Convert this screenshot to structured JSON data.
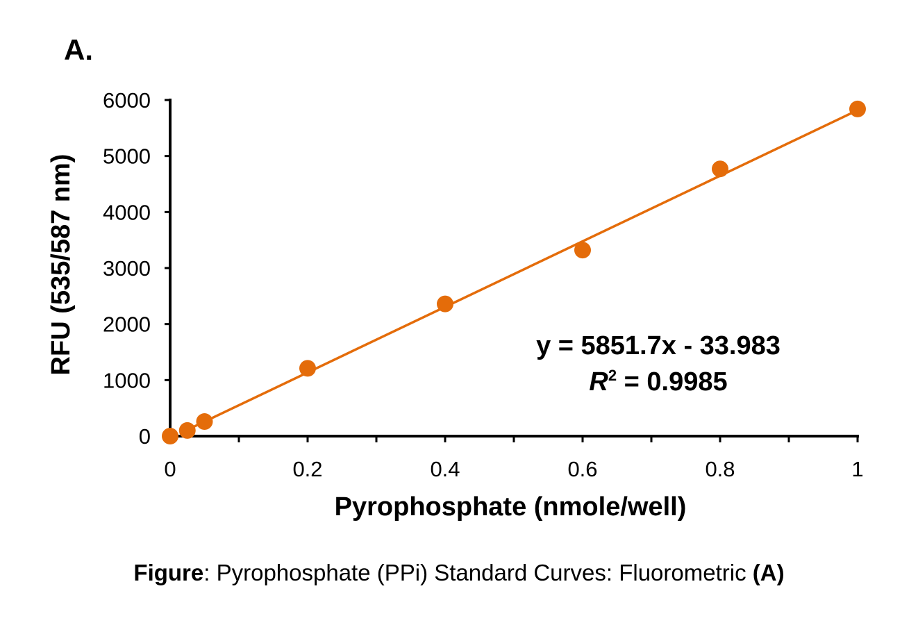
{
  "panel_label": "A.",
  "caption": {
    "bold_prefix": "Figure",
    "text": ": Pyrophosphate  (PPi) Standard Curves: Fluorometric ",
    "bold_suffix": "(A)"
  },
  "chart_data": {
    "type": "scatter",
    "xlabel": "Pyrophosphate  (nmole/well)",
    "ylabel": "RFU (535/587 nm)",
    "xlim": [
      0,
      1
    ],
    "ylim": [
      0,
      6000
    ],
    "x_ticks": [
      "0",
      "0.2",
      "0.4",
      "0.6",
      "0.8",
      "1"
    ],
    "x_tick_values": [
      0,
      0.2,
      0.4,
      0.6,
      0.8,
      1
    ],
    "x_minor_step": 0.1,
    "y_ticks": [
      "0",
      "1000",
      "2000",
      "3000",
      "4000",
      "5000",
      "6000"
    ],
    "y_tick_values": [
      0,
      1000,
      2000,
      3000,
      4000,
      5000,
      6000
    ],
    "grid": false,
    "color": "#E46C0A",
    "points": [
      {
        "x": 0,
        "y": 0
      },
      {
        "x": 0.025,
        "y": 100
      },
      {
        "x": 0.05,
        "y": 260
      },
      {
        "x": 0.2,
        "y": 1210
      },
      {
        "x": 0.4,
        "y": 2360
      },
      {
        "x": 0.6,
        "y": 3320
      },
      {
        "x": 0.8,
        "y": 4770
      },
      {
        "x": 1,
        "y": 5840
      }
    ],
    "trendline": {
      "slope": 5851.7,
      "intercept": -33.983
    },
    "annotation": {
      "equation": "y = 5851.7x - 33.983",
      "r2_label": "R",
      "r2_sup": "2",
      "r2_value": " = 0.9985"
    }
  }
}
